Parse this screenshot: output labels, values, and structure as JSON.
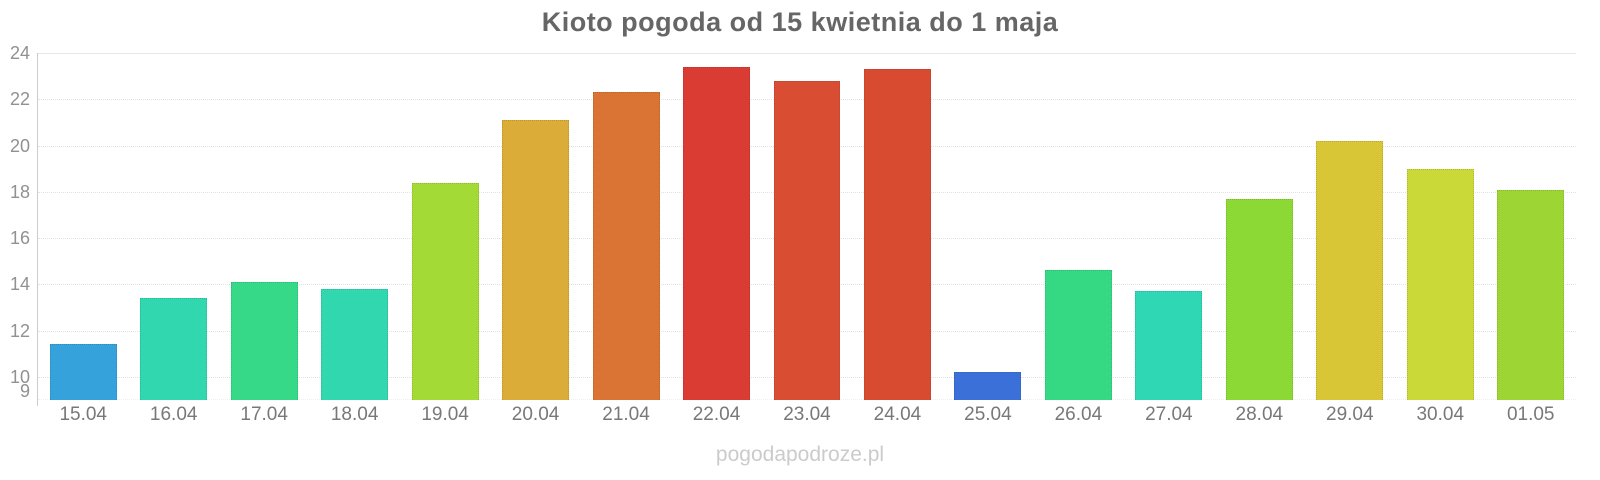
{
  "chart": {
    "title": "Kioto pogoda od 15 kwietnia do 1 maja"
  },
  "footer": {
    "watermark": "pogodapodroze.pl"
  },
  "chart_data": {
    "type": "bar",
    "title": "Kioto pogoda od 15 kwietnia do 1 maja",
    "xlabel": "",
    "ylabel": "",
    "categories": [
      "15.04",
      "16.04",
      "17.04",
      "18.04",
      "19.04",
      "20.04",
      "21.04",
      "22.04",
      "23.04",
      "24.04",
      "25.04",
      "26.04",
      "27.04",
      "28.04",
      "29.04",
      "30.04",
      "01.05"
    ],
    "values": [
      11.4,
      13.4,
      14.1,
      13.8,
      18.4,
      21.1,
      22.3,
      23.4,
      22.8,
      23.3,
      10.2,
      14.6,
      13.7,
      17.7,
      20.2,
      19.0,
      18.1
    ],
    "bar_colors": [
      "#36A2DB",
      "#31D8AF",
      "#36D987",
      "#31D8AF",
      "#A4DA35",
      "#DBAC38",
      "#DA7434",
      "#DA3B33",
      "#D94E33",
      "#D94B31",
      "#3B70D9",
      "#35D983",
      "#30D7B5",
      "#8CD834",
      "#D8C637",
      "#CBD938",
      "#9DD634"
    ],
    "ylim": [
      9,
      24
    ],
    "yticks": [
      24,
      22,
      20,
      18,
      16,
      14,
      12,
      10,
      9
    ],
    "gridlines": [
      24,
      22,
      20,
      18,
      16,
      14,
      12,
      10
    ],
    "grid": "horizontal dotted",
    "legend": "none",
    "colors": {
      "background": "#ffffff",
      "title_text": "#666666",
      "ytick_text": "#919191",
      "xtick_text": "#787878",
      "axis_line": "#cccccc",
      "gridline": "#e2e2e2",
      "watermark_text": "#cbcbcb"
    }
  }
}
